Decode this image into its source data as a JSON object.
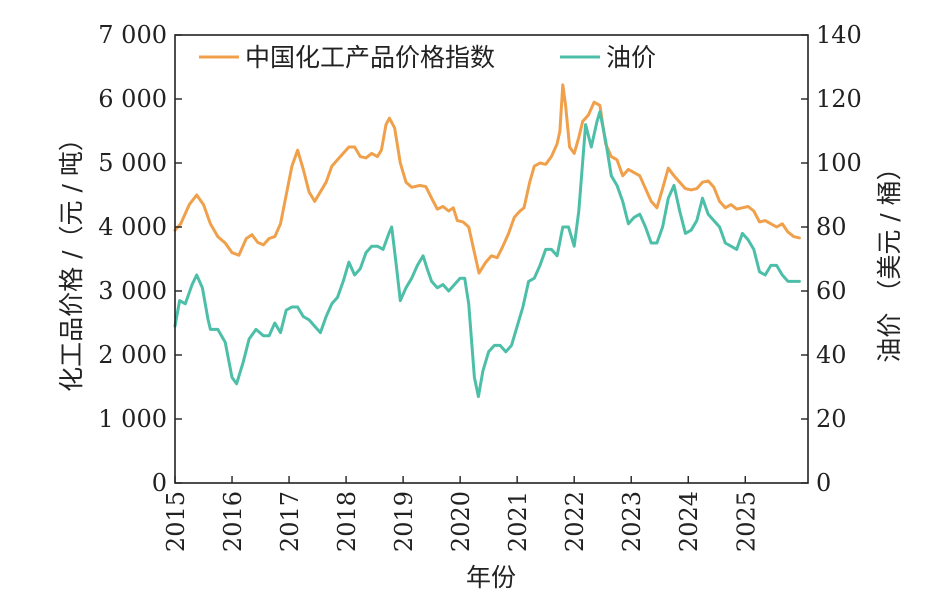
{
  "chart_data": {
    "type": "line",
    "xlabel": "年份",
    "ylabel_left": "化工品价格 /（元 / 吨）",
    "ylabel_right": "油价 （美元 / 桶）",
    "xlim": [
      2015,
      2026.1
    ],
    "ylim_left": [
      0,
      7000
    ],
    "ylim_right": [
      0,
      140
    ],
    "x_ticks": [
      2015,
      2016,
      2017,
      2018,
      2019,
      2020,
      2021,
      2022,
      2023,
      2024,
      2025
    ],
    "left_ticks": [
      {
        "value": 0,
        "label": "0"
      },
      {
        "value": 1000,
        "label": "1 000"
      },
      {
        "value": 2000,
        "label": "2 000"
      },
      {
        "value": 3000,
        "label": "3 000"
      },
      {
        "value": 4000,
        "label": "4 000"
      },
      {
        "value": 5000,
        "label": "5 000"
      },
      {
        "value": 6000,
        "label": "6 000"
      },
      {
        "value": 7000,
        "label": "7 000"
      }
    ],
    "right_ticks": [
      {
        "value": 0,
        "label": "0"
      },
      {
        "value": 20,
        "label": "20"
      },
      {
        "value": 40,
        "label": "40"
      },
      {
        "value": 60,
        "label": "60"
      },
      {
        "value": 80,
        "label": "80"
      },
      {
        "value": 100,
        "label": "100"
      },
      {
        "value": 120,
        "label": "120"
      },
      {
        "value": 140,
        "label": "140"
      }
    ],
    "legend_position": "top",
    "grid": false,
    "series": [
      {
        "name": "中国化工产品价格指数",
        "axis": "left",
        "color": "#F0A04B",
        "points": [
          [
            2015.0,
            3950
          ],
          [
            2015.1,
            4050
          ],
          [
            2015.25,
            4350
          ],
          [
            2015.38,
            4500
          ],
          [
            2015.5,
            4350
          ],
          [
            2015.62,
            4050
          ],
          [
            2015.75,
            3850
          ],
          [
            2015.88,
            3750
          ],
          [
            2016.0,
            3600
          ],
          [
            2016.12,
            3560
          ],
          [
            2016.25,
            3820
          ],
          [
            2016.35,
            3880
          ],
          [
            2016.45,
            3760
          ],
          [
            2016.55,
            3720
          ],
          [
            2016.65,
            3820
          ],
          [
            2016.75,
            3850
          ],
          [
            2016.85,
            4050
          ],
          [
            2016.95,
            4500
          ],
          [
            2017.05,
            4950
          ],
          [
            2017.15,
            5200
          ],
          [
            2017.25,
            4900
          ],
          [
            2017.35,
            4550
          ],
          [
            2017.45,
            4400
          ],
          [
            2017.55,
            4550
          ],
          [
            2017.65,
            4700
          ],
          [
            2017.75,
            4950
          ],
          [
            2017.85,
            5050
          ],
          [
            2017.95,
            5150
          ],
          [
            2018.05,
            5250
          ],
          [
            2018.15,
            5250
          ],
          [
            2018.25,
            5100
          ],
          [
            2018.35,
            5080
          ],
          [
            2018.45,
            5150
          ],
          [
            2018.55,
            5100
          ],
          [
            2018.62,
            5200
          ],
          [
            2018.7,
            5600
          ],
          [
            2018.76,
            5700
          ],
          [
            2018.85,
            5550
          ],
          [
            2018.95,
            5000
          ],
          [
            2019.05,
            4700
          ],
          [
            2019.15,
            4620
          ],
          [
            2019.3,
            4650
          ],
          [
            2019.4,
            4630
          ],
          [
            2019.5,
            4450
          ],
          [
            2019.6,
            4280
          ],
          [
            2019.7,
            4320
          ],
          [
            2019.8,
            4250
          ],
          [
            2019.88,
            4300
          ],
          [
            2019.95,
            4100
          ],
          [
            2020.05,
            4080
          ],
          [
            2020.15,
            4000
          ],
          [
            2020.25,
            3600
          ],
          [
            2020.33,
            3280
          ],
          [
            2020.45,
            3450
          ],
          [
            2020.55,
            3550
          ],
          [
            2020.65,
            3520
          ],
          [
            2020.75,
            3700
          ],
          [
            2020.85,
            3900
          ],
          [
            2020.95,
            4150
          ],
          [
            2021.05,
            4250
          ],
          [
            2021.12,
            4300
          ],
          [
            2021.22,
            4700
          ],
          [
            2021.3,
            4950
          ],
          [
            2021.4,
            5000
          ],
          [
            2021.5,
            4980
          ],
          [
            2021.6,
            5100
          ],
          [
            2021.7,
            5300
          ],
          [
            2021.75,
            5500
          ],
          [
            2021.8,
            6220
          ],
          [
            2021.85,
            5900
          ],
          [
            2021.92,
            5250
          ],
          [
            2022.0,
            5150
          ],
          [
            2022.08,
            5400
          ],
          [
            2022.15,
            5650
          ],
          [
            2022.25,
            5750
          ],
          [
            2022.35,
            5950
          ],
          [
            2022.45,
            5900
          ],
          [
            2022.55,
            5300
          ],
          [
            2022.65,
            5100
          ],
          [
            2022.75,
            5050
          ],
          [
            2022.85,
            4800
          ],
          [
            2022.95,
            4900
          ],
          [
            2023.05,
            4850
          ],
          [
            2023.15,
            4800
          ],
          [
            2023.25,
            4600
          ],
          [
            2023.35,
            4400
          ],
          [
            2023.45,
            4300
          ],
          [
            2023.55,
            4600
          ],
          [
            2023.65,
            4920
          ],
          [
            2023.75,
            4800
          ],
          [
            2023.85,
            4700
          ],
          [
            2023.95,
            4600
          ],
          [
            2024.05,
            4580
          ],
          [
            2024.15,
            4600
          ],
          [
            2024.25,
            4700
          ],
          [
            2024.35,
            4720
          ],
          [
            2024.45,
            4620
          ],
          [
            2024.55,
            4400
          ],
          [
            2024.65,
            4300
          ],
          [
            2024.75,
            4350
          ],
          [
            2024.85,
            4280
          ],
          [
            2024.95,
            4300
          ],
          [
            2025.05,
            4320
          ],
          [
            2025.15,
            4250
          ],
          [
            2025.25,
            4080
          ],
          [
            2025.35,
            4100
          ],
          [
            2025.45,
            4050
          ],
          [
            2025.55,
            4000
          ],
          [
            2025.65,
            4050
          ],
          [
            2025.75,
            3920
          ],
          [
            2025.85,
            3850
          ],
          [
            2025.95,
            3830
          ]
        ]
      },
      {
        "name": "油价",
        "axis": "right",
        "color": "#4DBFA8",
        "points": [
          [
            2015.0,
            49
          ],
          [
            2015.08,
            57
          ],
          [
            2015.18,
            56
          ],
          [
            2015.3,
            62
          ],
          [
            2015.38,
            65
          ],
          [
            2015.48,
            61
          ],
          [
            2015.58,
            51
          ],
          [
            2015.62,
            48
          ],
          [
            2015.75,
            48
          ],
          [
            2015.88,
            44
          ],
          [
            2016.0,
            33
          ],
          [
            2016.08,
            31
          ],
          [
            2016.2,
            38
          ],
          [
            2016.3,
            45
          ],
          [
            2016.42,
            48
          ],
          [
            2016.55,
            46
          ],
          [
            2016.65,
            46
          ],
          [
            2016.75,
            50
          ],
          [
            2016.85,
            47
          ],
          [
            2016.95,
            54
          ],
          [
            2017.05,
            55
          ],
          [
            2017.15,
            55
          ],
          [
            2017.25,
            52
          ],
          [
            2017.35,
            51
          ],
          [
            2017.45,
            49
          ],
          [
            2017.55,
            47
          ],
          [
            2017.65,
            52
          ],
          [
            2017.75,
            56
          ],
          [
            2017.85,
            58
          ],
          [
            2017.95,
            63
          ],
          [
            2018.05,
            69
          ],
          [
            2018.15,
            65
          ],
          [
            2018.25,
            67
          ],
          [
            2018.35,
            72
          ],
          [
            2018.45,
            74
          ],
          [
            2018.55,
            74
          ],
          [
            2018.65,
            73
          ],
          [
            2018.75,
            78
          ],
          [
            2018.8,
            80
          ],
          [
            2018.88,
            68
          ],
          [
            2018.95,
            57
          ],
          [
            2019.05,
            61
          ],
          [
            2019.15,
            64
          ],
          [
            2019.25,
            68
          ],
          [
            2019.35,
            71
          ],
          [
            2019.42,
            67
          ],
          [
            2019.5,
            63
          ],
          [
            2019.6,
            61
          ],
          [
            2019.7,
            62
          ],
          [
            2019.8,
            60
          ],
          [
            2019.9,
            62
          ],
          [
            2020.0,
            64
          ],
          [
            2020.08,
            64
          ],
          [
            2020.15,
            56
          ],
          [
            2020.25,
            33
          ],
          [
            2020.32,
            27
          ],
          [
            2020.4,
            35
          ],
          [
            2020.5,
            41
          ],
          [
            2020.6,
            43
          ],
          [
            2020.7,
            43
          ],
          [
            2020.8,
            41
          ],
          [
            2020.9,
            43
          ],
          [
            2021.0,
            49
          ],
          [
            2021.1,
            55
          ],
          [
            2021.2,
            63
          ],
          [
            2021.3,
            64
          ],
          [
            2021.4,
            68
          ],
          [
            2021.5,
            73
          ],
          [
            2021.6,
            73
          ],
          [
            2021.7,
            71
          ],
          [
            2021.8,
            80
          ],
          [
            2021.9,
            80
          ],
          [
            2022.0,
            74
          ],
          [
            2022.08,
            85
          ],
          [
            2022.2,
            112
          ],
          [
            2022.3,
            105
          ],
          [
            2022.4,
            113
          ],
          [
            2022.45,
            116
          ],
          [
            2022.55,
            107
          ],
          [
            2022.65,
            96
          ],
          [
            2022.75,
            93
          ],
          [
            2022.85,
            88
          ],
          [
            2022.95,
            81
          ],
          [
            2023.05,
            83
          ],
          [
            2023.15,
            84
          ],
          [
            2023.25,
            80
          ],
          [
            2023.35,
            75
          ],
          [
            2023.45,
            75
          ],
          [
            2023.55,
            80
          ],
          [
            2023.65,
            89
          ],
          [
            2023.75,
            93
          ],
          [
            2023.85,
            85
          ],
          [
            2023.95,
            78
          ],
          [
            2024.05,
            79
          ],
          [
            2024.15,
            82
          ],
          [
            2024.25,
            89
          ],
          [
            2024.35,
            84
          ],
          [
            2024.45,
            82
          ],
          [
            2024.55,
            80
          ],
          [
            2024.65,
            75
          ],
          [
            2024.75,
            74
          ],
          [
            2024.85,
            73
          ],
          [
            2024.95,
            78
          ],
          [
            2025.05,
            76
          ],
          [
            2025.15,
            73
          ],
          [
            2025.25,
            66
          ],
          [
            2025.35,
            65
          ],
          [
            2025.45,
            68
          ],
          [
            2025.55,
            68
          ],
          [
            2025.65,
            65
          ],
          [
            2025.75,
            63
          ],
          [
            2025.85,
            63
          ],
          [
            2025.95,
            63
          ]
        ]
      }
    ]
  }
}
